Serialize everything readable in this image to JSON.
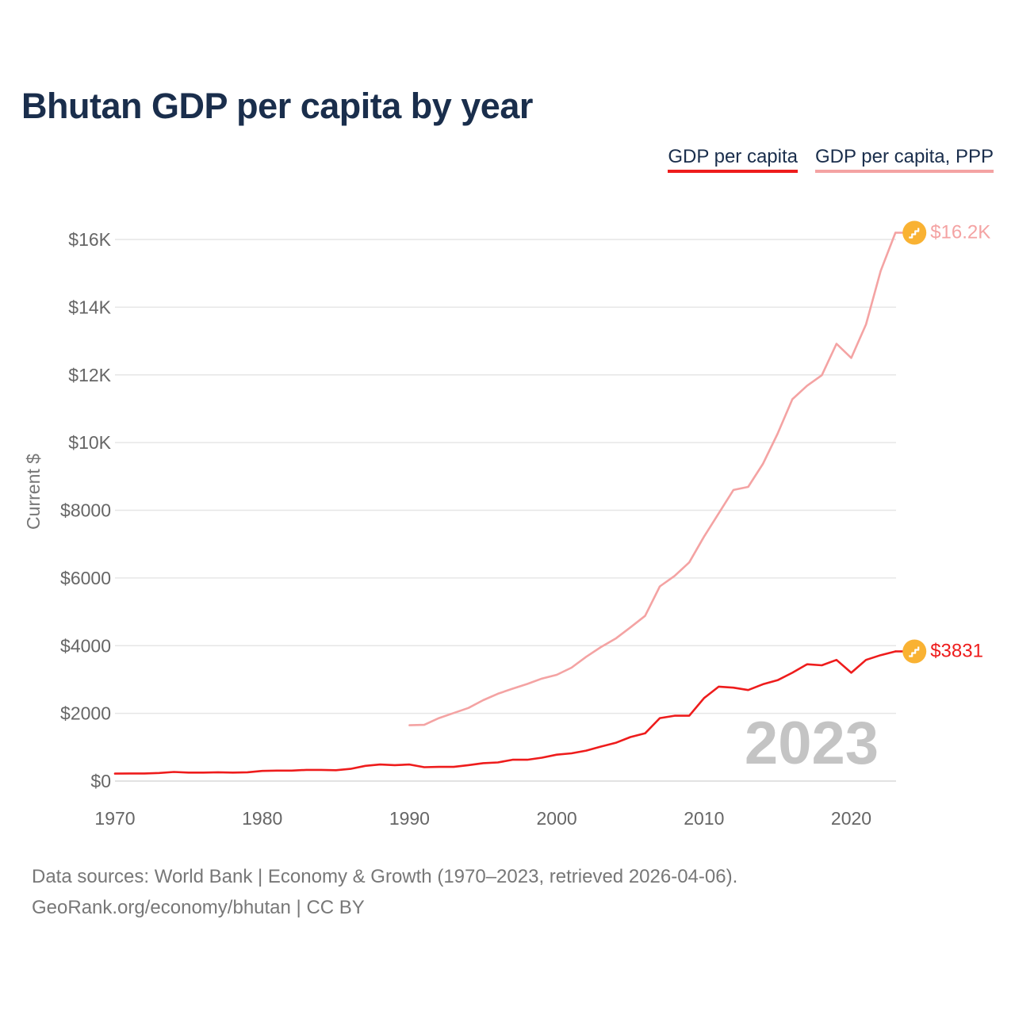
{
  "title": "Bhutan GDP per capita by year",
  "legend": {
    "gdp_label": "GDP per capita",
    "ppp_label": "GDP per capita, PPP"
  },
  "footer": {
    "line1": "Data sources: World Bank | Economy & Growth (1970–2023, retrieved 2026-04-06).",
    "line2": "GeoRank.org/economy/bhutan | CC BY"
  },
  "colors": {
    "gdp": "#ee1c1c",
    "ppp": "#f4a3a3",
    "title": "#1a2e4c",
    "marker": "#f9b233"
  },
  "chart_data": {
    "type": "line",
    "title": "Bhutan GDP per capita by year",
    "xlabel": "",
    "ylabel": "Current $",
    "xlim": [
      1970,
      2023
    ],
    "ylim": [
      0,
      16500
    ],
    "x_ticks": [
      1970,
      1980,
      1990,
      2000,
      2010,
      2020
    ],
    "y_ticks": [
      {
        "value": 0,
        "label": "$0"
      },
      {
        "value": 2000,
        "label": "$2000"
      },
      {
        "value": 4000,
        "label": "$4000"
      },
      {
        "value": 6000,
        "label": "$6000"
      },
      {
        "value": 8000,
        "label": "$8000"
      },
      {
        "value": 10000,
        "label": "$10K"
      },
      {
        "value": 12000,
        "label": "$12K"
      },
      {
        "value": 14000,
        "label": "$14K"
      },
      {
        "value": 16000,
        "label": "$16K"
      }
    ],
    "year_label": "2023",
    "series": [
      {
        "name": "GDP per capita",
        "end_label": "$3831",
        "x": [
          1970,
          1971,
          1972,
          1973,
          1974,
          1975,
          1976,
          1977,
          1978,
          1979,
          1980,
          1981,
          1982,
          1983,
          1984,
          1985,
          1986,
          1987,
          1988,
          1989,
          1990,
          1991,
          1992,
          1993,
          1994,
          1995,
          1996,
          1997,
          1998,
          1999,
          2000,
          2001,
          2002,
          2003,
          2004,
          2005,
          2006,
          2007,
          2008,
          2009,
          2010,
          2011,
          2012,
          2013,
          2014,
          2015,
          2016,
          2017,
          2018,
          2019,
          2020,
          2021,
          2022,
          2023
        ],
        "values": [
          220,
          225,
          225,
          240,
          270,
          250,
          250,
          260,
          250,
          260,
          300,
          310,
          310,
          330,
          330,
          320,
          360,
          450,
          490,
          470,
          490,
          410,
          420,
          420,
          470,
          530,
          550,
          630,
          630,
          690,
          780,
          820,
          900,
          1020,
          1130,
          1300,
          1410,
          1860,
          1930,
          1930,
          2450,
          2790,
          2760,
          2690,
          2860,
          2980,
          3200,
          3450,
          3420,
          3580,
          3200,
          3580,
          3720,
          3831
        ]
      },
      {
        "name": "GDP per capita, PPP",
        "end_label": "$16.2K",
        "x": [
          1990,
          1991,
          1992,
          1993,
          1994,
          1995,
          1996,
          1997,
          1998,
          1999,
          2000,
          2001,
          2002,
          2003,
          2004,
          2005,
          2006,
          2007,
          2008,
          2009,
          2010,
          2011,
          2012,
          2013,
          2014,
          2015,
          2016,
          2017,
          2018,
          2019,
          2020,
          2021,
          2022,
          2023
        ],
        "values": [
          1650,
          1660,
          1860,
          2010,
          2160,
          2390,
          2580,
          2730,
          2870,
          3030,
          3140,
          3350,
          3670,
          3960,
          4210,
          4540,
          4880,
          5750,
          6060,
          6460,
          7220,
          7910,
          8600,
          8690,
          9370,
          10260,
          11280,
          11680,
          11990,
          12920,
          12500,
          13490,
          15070,
          16200
        ]
      }
    ]
  }
}
